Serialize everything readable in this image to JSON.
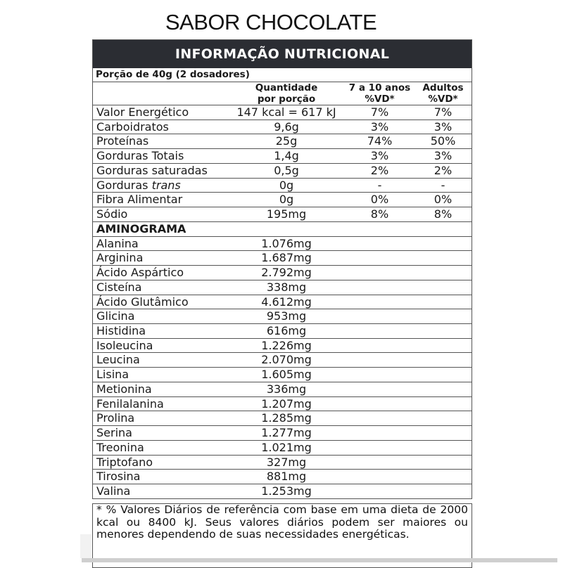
{
  "title": "SABOR CHOCOLATE",
  "label": {
    "header": "INFORMAÇÃO NUTRICIONAL",
    "portion": "Porção de 40g (2 dosadores)",
    "columns": {
      "quantity_1": "Quantidade",
      "quantity_2": "por porção",
      "kids_1": "7 a 10 anos",
      "kids_2": "%VD*",
      "adults_1": "Adultos",
      "adults_2": "%VD*"
    },
    "nutrients": [
      {
        "name": "Valor Energético",
        "qty": "147 kcal = 617 kJ",
        "kids": "7%",
        "adults": "7%"
      },
      {
        "name": "Carboidratos",
        "qty": "9,6g",
        "kids": "3%",
        "adults": "3%"
      },
      {
        "name": "Proteínas",
        "qty": "25g",
        "kids": "74%",
        "adults": "50%"
      },
      {
        "name": "Gorduras Totais",
        "qty": "1,4g",
        "kids": "3%",
        "adults": "3%"
      },
      {
        "name": "Gorduras saturadas",
        "qty": "0,5g",
        "kids": "2%",
        "adults": "2%"
      },
      {
        "name": "Gorduras",
        "name_italic": "trans",
        "qty": "0g",
        "kids": "-",
        "adults": "-"
      },
      {
        "name": "Fibra Alimentar",
        "qty": "0g",
        "kids": "0%",
        "adults": "0%"
      },
      {
        "name": "Sódio",
        "qty": "195mg",
        "kids": "8%",
        "adults": "8%"
      }
    ],
    "aminogram_title": "AMINOGRAMA",
    "aminogram": [
      {
        "name": "Alanina",
        "qty": "1.076mg"
      },
      {
        "name": "Arginina",
        "qty": "1.687mg"
      },
      {
        "name": "Ácido Aspártico",
        "qty": "2.792mg"
      },
      {
        "name": "Cisteína",
        "qty": "338mg"
      },
      {
        "name": "Ácido Glutâmico",
        "qty": "4.612mg"
      },
      {
        "name": "Glicina",
        "qty": "953mg"
      },
      {
        "name": "Histidina",
        "qty": "616mg"
      },
      {
        "name": "Isoleucina",
        "qty": "1.226mg"
      },
      {
        "name": "Leucina",
        "qty": "2.070mg"
      },
      {
        "name": "Lisina",
        "qty": "1.605mg"
      },
      {
        "name": "Metionina",
        "qty": "336mg"
      },
      {
        "name": "Fenilalanina",
        "qty": "1.207mg"
      },
      {
        "name": "Prolina",
        "qty": "1.285mg"
      },
      {
        "name": "Serina",
        "qty": "1.277mg"
      },
      {
        "name": "Treonina",
        "qty": "1.021mg"
      },
      {
        "name": "Triptofano",
        "qty": "327mg"
      },
      {
        "name": "Tirosina",
        "qty": "881mg"
      },
      {
        "name": "Valina",
        "qty": "1.253mg"
      }
    ],
    "footnote": "* % Valores Diários de referência com base em uma dieta de 2000 kcal ou 8400 kJ. Seus valores diários podem ser maiores ou menores dependendo de suas necessidades energéticas."
  }
}
